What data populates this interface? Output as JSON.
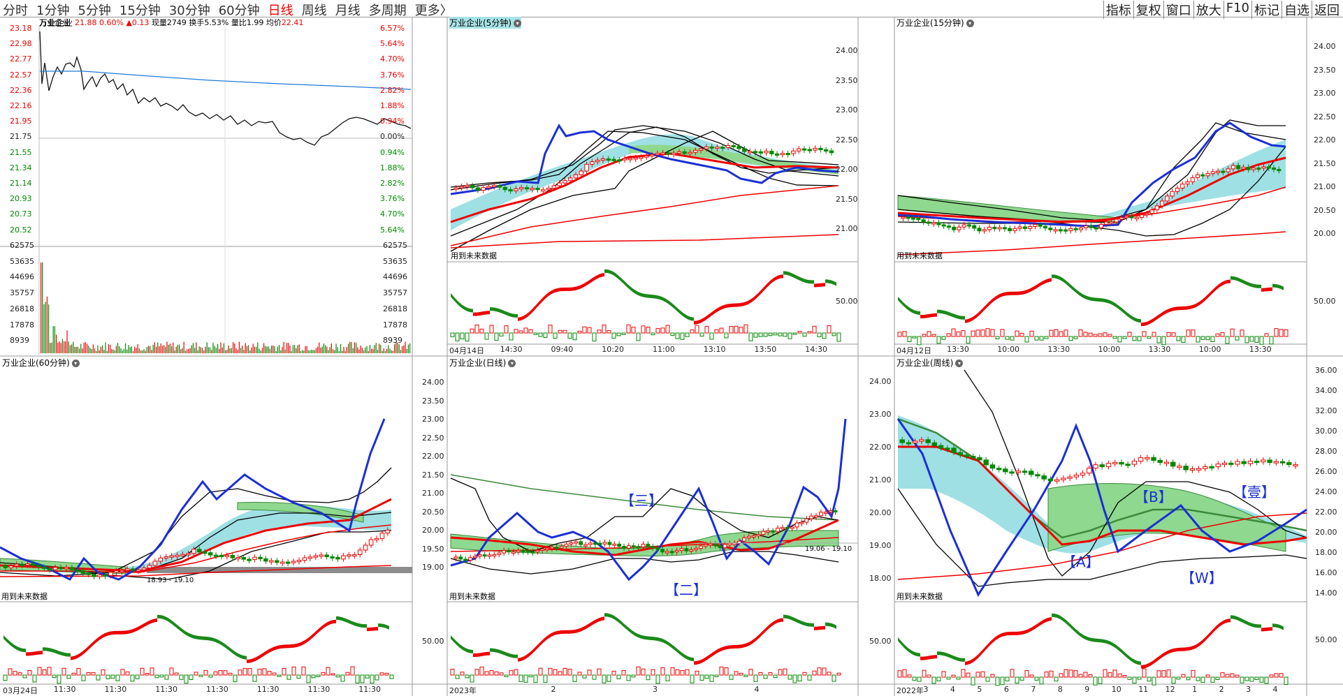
{
  "toolbar": {
    "left": [
      "分时",
      "1分钟",
      "5分钟",
      "15分钟",
      "30分钟",
      "60分钟",
      "日线",
      "周线",
      "月线",
      "多周期",
      "更多〉"
    ],
    "right": [
      "指标",
      "复权",
      "窗口",
      "放大",
      "F10",
      "标记",
      "自选",
      "返回"
    ]
  },
  "timeshare": {
    "name": "万业企业",
    "price": "21.88",
    "pct": "0.60%",
    "chg": "▲0.13",
    "vol_label": "现量",
    "vol": "2749",
    "turnover_label": "换手",
    "turnover": "5.53%",
    "ratio_label": "量比",
    "ratio": "1.99",
    "avg_label": "均价",
    "avg": "22.41",
    "price_ticks": [
      "23.18",
      "22.98",
      "22.77",
      "22.57",
      "22.36",
      "22.16",
      "21.95",
      "21.75",
      "21.55",
      "21.34",
      "21.14",
      "20.93",
      "20.73",
      "20.52"
    ],
    "pct_ticks": [
      "6.57%",
      "5.64%",
      "4.70%",
      "3.76%",
      "2.82%",
      "1.88%",
      "0.94%",
      "0.00%",
      "0.94%",
      "1.88%",
      "2.82%",
      "3.76%",
      "4.70%",
      "5.64%"
    ],
    "vol_ticks": [
      "62575",
      "53635",
      "44696",
      "35757",
      "26818",
      "17878",
      "8939"
    ]
  },
  "p5": {
    "title": "万业企业(5分钟)",
    "note": "用到未来数据",
    "yticks": [
      "24.00",
      "23.50",
      "23.00",
      "22.50",
      "22.00",
      "21.50",
      "21.00"
    ],
    "osc": "50.00",
    "xticks": [
      "04月14日",
      "14:30",
      "09:40",
      "10:20",
      "11:00",
      "13:10",
      "13:50",
      "14:30"
    ]
  },
  "p15": {
    "title": "万业企业(15分钟)",
    "note": "用到未来数据",
    "yticks": [
      "24.00",
      "23.50",
      "23.00",
      "22.50",
      "22.00",
      "21.50",
      "21.00",
      "20.50",
      "20.00"
    ],
    "osc": "50.00",
    "xticks": [
      "04月12日",
      "13:30",
      "10:00",
      "13:30",
      "10:00",
      "13:30",
      "10:00",
      "13:30"
    ]
  },
  "p60": {
    "title": "万业企业(60分钟)",
    "note": "用到未来数据",
    "range": "18.93 - 19.10",
    "xticks": [
      "03月24日",
      "11:30",
      "11:30",
      "11:30",
      "11:30",
      "11:30",
      "11:30",
      "11:30"
    ]
  },
  "pday": {
    "title": "万业企业(日线)",
    "note": "用到未来数据",
    "yticks": [
      "24.00",
      "23.50",
      "23.00",
      "22.50",
      "22.00",
      "21.50",
      "21.00",
      "20.50",
      "20.00",
      "19.50",
      "19.00"
    ],
    "osc": "50.00",
    "range": "19.06 - 19.10",
    "labels": [
      "【三】",
      "【二】"
    ],
    "xticks": [
      "2023年",
      "2",
      "3",
      "4"
    ]
  },
  "pweek": {
    "title": "万业企业(周线)",
    "note": "用到未来数据",
    "yticks": [
      "24.00",
      "23.00",
      "22.00",
      "21.00",
      "20.00",
      "19.00",
      "18.00"
    ],
    "ryticks": [
      "36.00",
      "34.00",
      "32.00",
      "30.00",
      "28.00",
      "26.00",
      "24.00",
      "22.00",
      "20.00",
      "18.00",
      "16.00",
      "14.00"
    ],
    "osc": "50.00",
    "labels": [
      "【B】",
      "【A】",
      "【W】",
      "【壹】"
    ],
    "xticks": [
      "2022年",
      "3",
      "4",
      "5",
      "6",
      "7",
      "8",
      "9",
      "10",
      "11",
      "12",
      "1",
      "2",
      "3",
      "4"
    ]
  },
  "colors": {
    "up": "#e00000",
    "down": "#008000",
    "blue": "#1a2fd6",
    "cyan": "#7dd3d8",
    "green_band": "#8fd88f"
  }
}
